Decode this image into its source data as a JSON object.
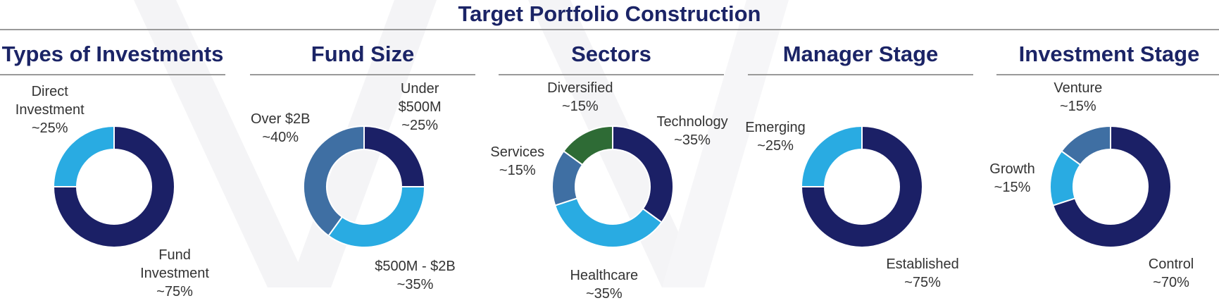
{
  "title": "Target Portfolio Construction",
  "colors": {
    "navy": "#1b2066",
    "sky": "#29abe2",
    "steel": "#3f6fa3",
    "green": "#2e6b35",
    "heading": "#1b2466"
  },
  "chart_data": [
    {
      "type": "donut",
      "title": "Types of Investments",
      "slices": [
        {
          "label": "Fund\nInvestment\n~75%",
          "value": 75,
          "color": "#1b2066"
        },
        {
          "label": "Direct\nInvestment\n~25%",
          "value": 25,
          "color": "#29abe2"
        }
      ]
    },
    {
      "type": "donut",
      "title": "Fund Size",
      "slices": [
        {
          "label": "Under\n$500M\n~25%",
          "value": 25,
          "color": "#1b2066"
        },
        {
          "label": "$500M - $2B\n~35%",
          "value": 35,
          "color": "#29abe2"
        },
        {
          "label": "Over $2B\n~40%",
          "value": 40,
          "color": "#3f6fa3"
        }
      ]
    },
    {
      "type": "donut",
      "title": "Sectors",
      "slices": [
        {
          "label": "Technology\n~35%",
          "value": 35,
          "color": "#1b2066"
        },
        {
          "label": "Healthcare\n~35%",
          "value": 35,
          "color": "#29abe2"
        },
        {
          "label": "Services\n~15%",
          "value": 15,
          "color": "#3f6fa3"
        },
        {
          "label": "Diversified\n~15%",
          "value": 15,
          "color": "#2e6b35"
        }
      ]
    },
    {
      "type": "donut",
      "title": "Manager Stage",
      "slices": [
        {
          "label": "Established\n~75%",
          "value": 75,
          "color": "#1b2066"
        },
        {
          "label": "Emerging\n~25%",
          "value": 25,
          "color": "#29abe2"
        }
      ]
    },
    {
      "type": "donut",
      "title": "Investment Stage",
      "slices": [
        {
          "label": "Control\n~70%",
          "value": 70,
          "color": "#1b2066"
        },
        {
          "label": "Growth\n~15%",
          "value": 15,
          "color": "#29abe2"
        },
        {
          "label": "Venture\n~15%",
          "value": 15,
          "color": "#3f6fa3"
        }
      ]
    }
  ]
}
